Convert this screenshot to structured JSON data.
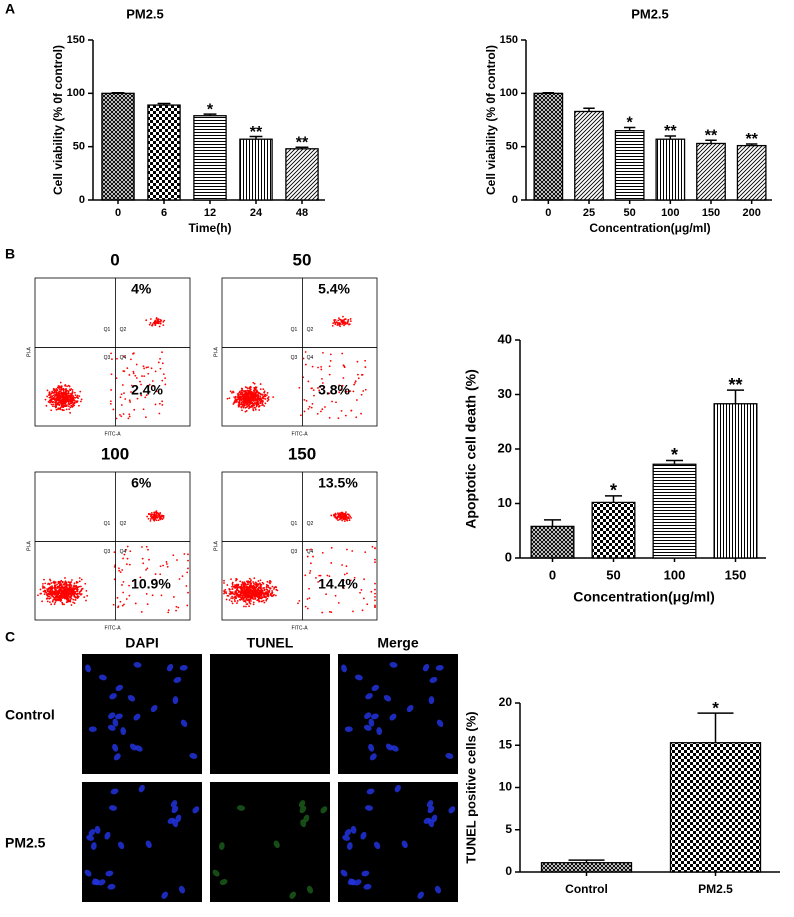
{
  "panel_labels": [
    "A",
    "B",
    "C"
  ],
  "chart_data": [
    {
      "type": "bar",
      "title": "PM2.5",
      "ylabel": "Cell viability (% 0f control)",
      "xlabel": "Time(h)",
      "categories": [
        "0",
        "6",
        "12",
        "24",
        "48"
      ],
      "values": [
        100,
        89,
        79,
        57,
        48
      ],
      "errors": [
        0.5,
        1.5,
        1.5,
        2.5,
        1.5
      ],
      "annotations": [
        null,
        null,
        "*",
        "**",
        "**"
      ],
      "patterns": [
        "crosshatch",
        "checker",
        "hlines",
        "vlines",
        "diag"
      ],
      "ylim": [
        0,
        150
      ],
      "yticks": [
        0,
        50,
        100,
        150
      ]
    },
    {
      "type": "bar",
      "title": "PM2.5",
      "ylabel": "Cell viability (% 0f control)",
      "xlabel": "Concentration(μg/ml)",
      "categories": [
        "0",
        "25",
        "50",
        "100",
        "150",
        "200"
      ],
      "values": [
        100,
        83,
        65,
        57,
        53,
        51
      ],
      "errors": [
        0.5,
        3,
        3,
        3,
        3,
        1.5
      ],
      "annotations": [
        null,
        null,
        "*",
        "**",
        "**",
        "**"
      ],
      "patterns": [
        "crosshatch",
        "diag",
        "hlines",
        "vlines",
        "diag",
        "diag"
      ],
      "ylim": [
        0,
        150
      ],
      "yticks": [
        0,
        50,
        100,
        150
      ]
    },
    {
      "type": "bar",
      "ylabel": "Apoptotic cell death (%)",
      "xlabel": "Concentration(μg/ml)",
      "categories": [
        "0",
        "50",
        "100",
        "150"
      ],
      "values": [
        5.8,
        10.2,
        17.2,
        28.3
      ],
      "errors": [
        1.2,
        1.2,
        0.7,
        2.5
      ],
      "annotations": [
        null,
        "*",
        "*",
        "**"
      ],
      "patterns": [
        "crosshatch",
        "checker",
        "hlines",
        "vlines"
      ],
      "ylim": [
        0,
        40
      ],
      "yticks": [
        0,
        10,
        20,
        30,
        40
      ]
    },
    {
      "type": "bar",
      "ylabel": "TUNEL positive cells (%)",
      "categories": [
        "Control",
        "PM2.5"
      ],
      "values": [
        1.1,
        15.3
      ],
      "errors": [
        0.3,
        3.5
      ],
      "annotations": [
        null,
        "*"
      ],
      "patterns": [
        "crosshatch",
        "checker"
      ],
      "ylim": [
        0,
        20
      ],
      "yticks": [
        0,
        5,
        10,
        15,
        20
      ]
    }
  ],
  "flow_cytometry": {
    "x_axis": "FITC-A",
    "y_axis": "PI-A",
    "quadrants": [
      "Q1",
      "Q2",
      "Q3",
      "Q4"
    ],
    "plots": [
      {
        "label": "0",
        "q2": "4%",
        "q4": "2.4%"
      },
      {
        "label": "50",
        "q2": "5.4%",
        "q4": "3.8%"
      },
      {
        "label": "100",
        "q2": "6%",
        "q4": "10.9%"
      },
      {
        "label": "150",
        "q2": "13.5%",
        "q4": "14.4%"
      }
    ]
  },
  "micrographs": {
    "columns": [
      "DAPI",
      "TUNEL",
      "Merge"
    ],
    "rows": [
      "Control",
      "PM2.5"
    ]
  }
}
